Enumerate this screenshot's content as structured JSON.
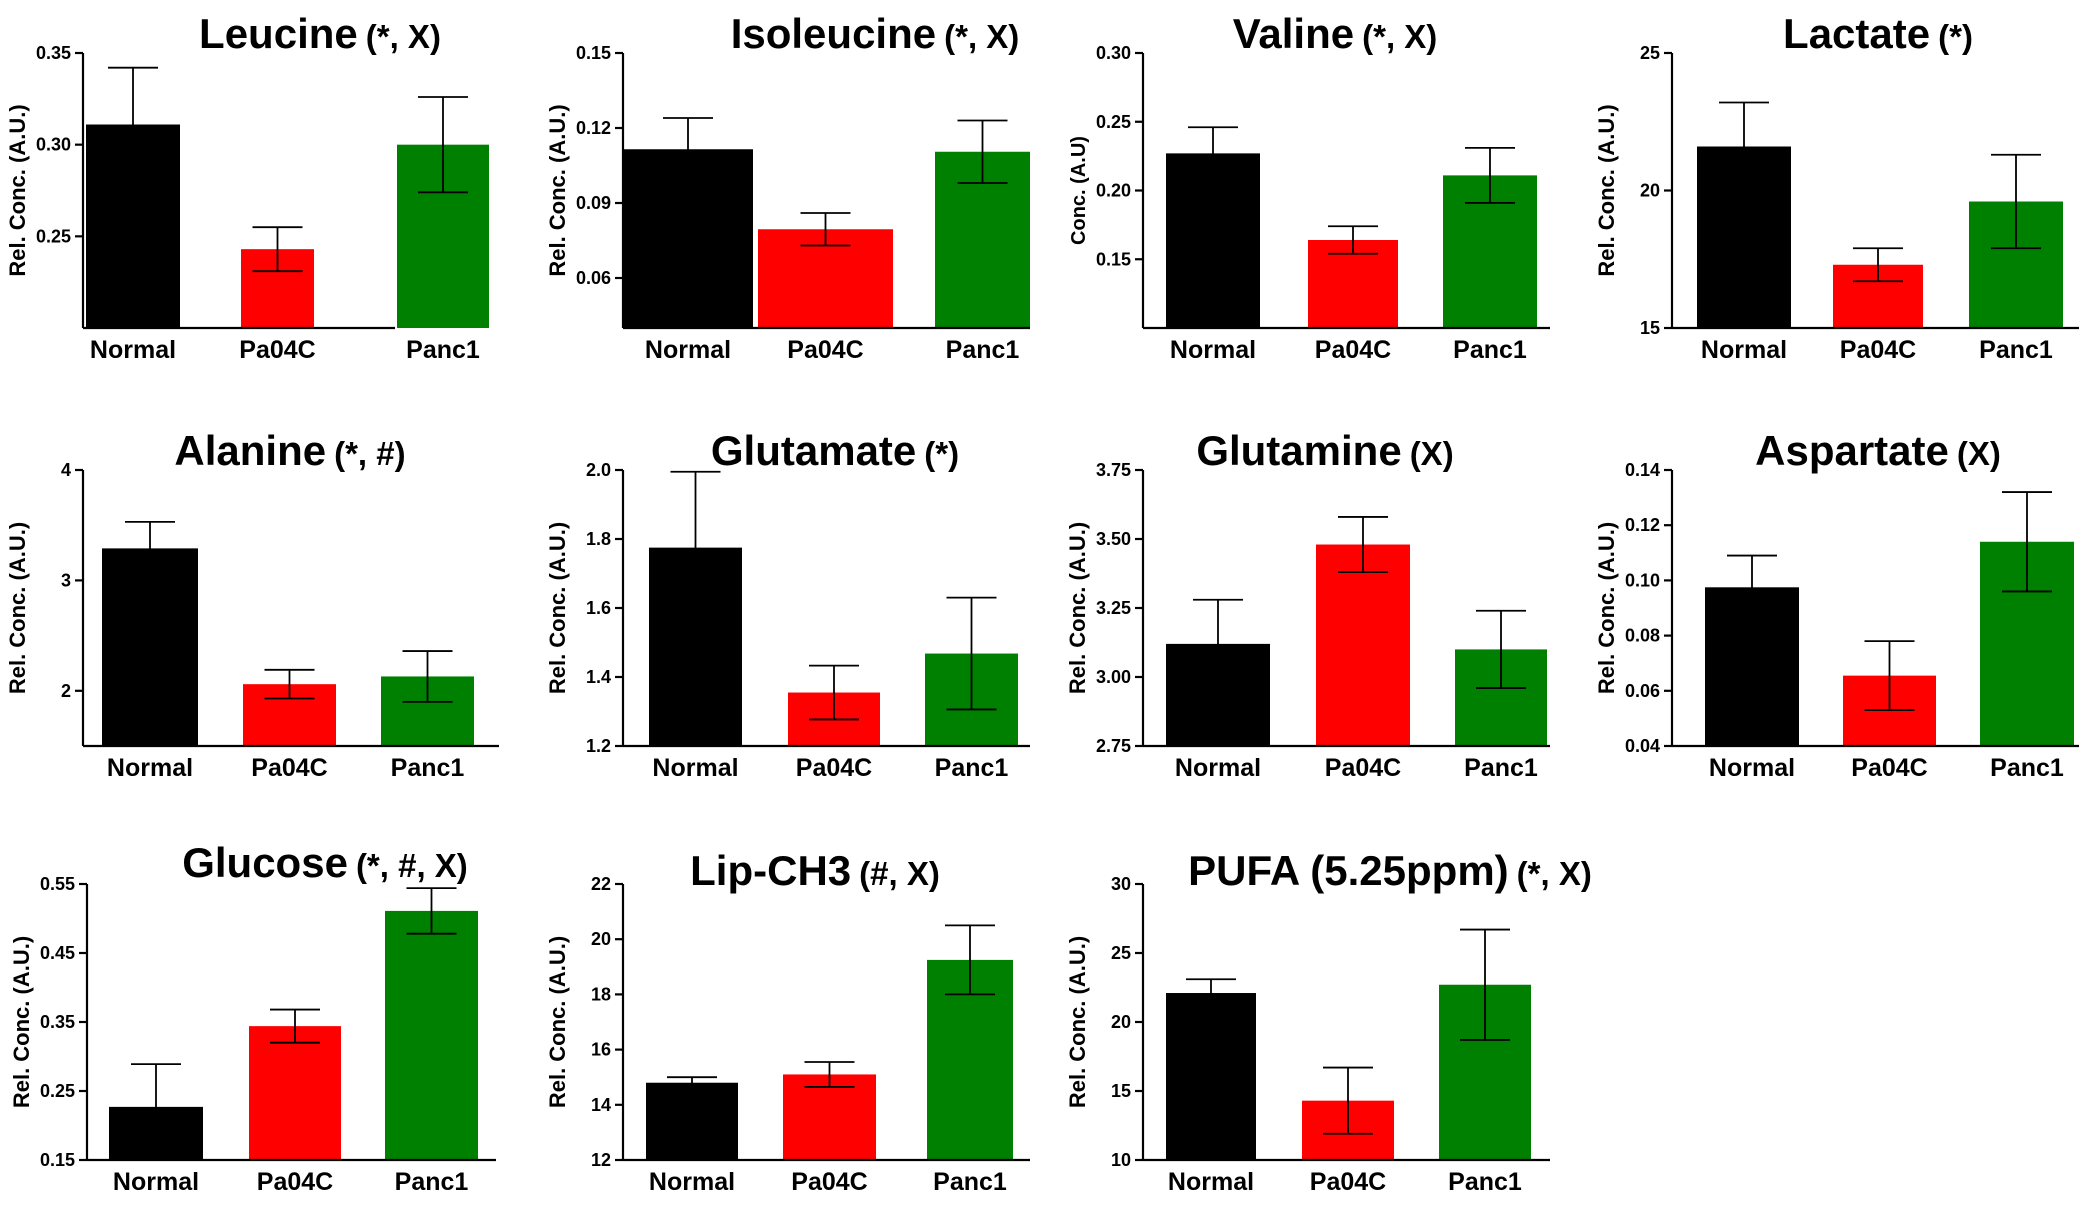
{
  "chart_data": [
    {
      "type": "bar",
      "title": "Leucine",
      "annotation": "(*, X)",
      "ylabel": "Rel. Conc. (A.U.)",
      "categories": [
        "Normal",
        "Pa04C",
        "Panc1"
      ],
      "values": [
        0.311,
        0.243,
        0.3
      ],
      "errors": [
        0.031,
        0.012,
        0.026
      ],
      "ylim": [
        0.2,
        0.35
      ],
      "ticks": [
        0.25,
        0.3,
        0.35
      ],
      "tick_labels": [
        "0.25",
        "0.30",
        "0.35"
      ],
      "colors": [
        "#000000",
        "#ff0000",
        "#008000"
      ]
    },
    {
      "type": "bar",
      "title": "Isoleucine",
      "annotation": "(*, X)",
      "ylabel": "Rel. Conc. (A.U.)",
      "categories": [
        "Normal",
        "Pa04C",
        "Panc1"
      ],
      "values": [
        0.1115,
        0.0795,
        0.1105
      ],
      "errors": [
        0.0125,
        0.0065,
        0.0125
      ],
      "ylim": [
        0.04,
        0.15
      ],
      "ticks": [
        0.06,
        0.09,
        0.12,
        0.15
      ],
      "tick_labels": [
        "0.06",
        "0.09",
        "0.12",
        "0.15"
      ],
      "colors": [
        "#000000",
        "#ff0000",
        "#008000"
      ]
    },
    {
      "type": "bar",
      "title": "Valine",
      "annotation": "(*, X)",
      "ylabel": "Conc. (A.U)",
      "categories": [
        "Normal",
        "Pa04C",
        "Panc1"
      ],
      "values": [
        0.227,
        0.164,
        0.211
      ],
      "errors": [
        0.019,
        0.01,
        0.02
      ],
      "ylim": [
        0.1,
        0.3
      ],
      "ticks": [
        0.15,
        0.2,
        0.25,
        0.3
      ],
      "tick_labels": [
        "0.15",
        "0.20",
        "0.25",
        "0.30"
      ],
      "colors": [
        "#000000",
        "#ff0000",
        "#008000"
      ]
    },
    {
      "type": "bar",
      "title": "Lactate",
      "annotation": "(*)",
      "ylabel": "Rel. Conc. (A.U.)",
      "categories": [
        "Normal",
        "Pa04C",
        "Panc1"
      ],
      "values": [
        21.6,
        17.3,
        19.6
      ],
      "errors": [
        1.6,
        0.6,
        1.7
      ],
      "ylim": [
        15,
        25
      ],
      "ticks": [
        15,
        20,
        25
      ],
      "tick_labels": [
        "15",
        "20",
        "25"
      ],
      "colors": [
        "#000000",
        "#ff0000",
        "#008000"
      ]
    },
    {
      "type": "bar",
      "title": "Alanine",
      "annotation": "(*, #)",
      "ylabel": "Rel. Conc. (A.U.)",
      "categories": [
        "Normal",
        "Pa04C",
        "Panc1"
      ],
      "values": [
        3.29,
        2.06,
        2.13
      ],
      "errors": [
        0.24,
        0.13,
        0.23
      ],
      "ylim": [
        1.5,
        4
      ],
      "ticks": [
        2,
        3,
        4
      ],
      "tick_labels": [
        "2",
        "3",
        "4"
      ],
      "colors": [
        "#000000",
        "#ff0000",
        "#008000"
      ]
    },
    {
      "type": "bar",
      "title": "Glutamate",
      "annotation": "(*)",
      "ylabel": "Rel. Conc. (A.U.)",
      "categories": [
        "Normal",
        "Pa04C",
        "Panc1"
      ],
      "values": [
        1.775,
        1.355,
        1.468
      ],
      "errors": [
        0.22,
        0.078,
        0.162
      ],
      "ylim": [
        1.2,
        2.0
      ],
      "ticks": [
        1.2,
        1.4,
        1.6,
        1.8,
        2.0
      ],
      "tick_labels": [
        "1.2",
        "1.4",
        "1.6",
        "1.8",
        "2.0"
      ],
      "colors": [
        "#000000",
        "#ff0000",
        "#008000"
      ]
    },
    {
      "type": "bar",
      "title": "Glutamine",
      "annotation": "(X)",
      "ylabel": "Rel. Conc. (A.U.)",
      "categories": [
        "Normal",
        "Pa04C",
        "Panc1"
      ],
      "values": [
        3.12,
        3.48,
        3.1
      ],
      "errors": [
        0.16,
        0.1,
        0.14
      ],
      "ylim": [
        2.75,
        3.75
      ],
      "ticks": [
        2.75,
        3.0,
        3.25,
        3.5,
        3.75
      ],
      "tick_labels": [
        "2.75",
        "3.00",
        "3.25",
        "3.50",
        "3.75"
      ],
      "colors": [
        "#000000",
        "#ff0000",
        "#008000"
      ]
    },
    {
      "type": "bar",
      "title": "Aspartate",
      "annotation": "(X)",
      "ylabel": "Rel. Conc. (A.U.)",
      "categories": [
        "Normal",
        "Pa04C",
        "Panc1"
      ],
      "values": [
        0.0975,
        0.0655,
        0.114
      ],
      "errors": [
        0.0115,
        0.0125,
        0.018
      ],
      "ylim": [
        0.04,
        0.14
      ],
      "ticks": [
        0.04,
        0.06,
        0.08,
        0.1,
        0.12,
        0.14
      ],
      "tick_labels": [
        "0.04",
        "0.06",
        "0.08",
        "0.10",
        "0.12",
        "0.14"
      ],
      "colors": [
        "#000000",
        "#ff0000",
        "#008000"
      ]
    },
    {
      "type": "bar",
      "title": "Glucose",
      "annotation": "(*, #, X)",
      "ylabel": "Rel. Conc. (A.U.)",
      "categories": [
        "Normal",
        "Pa04C",
        "Panc1"
      ],
      "values": [
        0.227,
        0.344,
        0.511
      ],
      "errors": [
        0.062,
        0.024,
        0.033
      ],
      "ylim": [
        0.15,
        0.55
      ],
      "ticks": [
        0.15,
        0.25,
        0.35,
        0.45,
        0.55
      ],
      "tick_labels": [
        "0.15",
        "0.25",
        "0.35",
        "0.45",
        "0.55"
      ],
      "colors": [
        "#000000",
        "#ff0000",
        "#008000"
      ]
    },
    {
      "type": "bar",
      "title": "Lip-CH3",
      "annotation": "(#, X)",
      "ylabel": "Rel. Conc. (A.U.)",
      "categories": [
        "Normal",
        "Pa04C",
        "Panc1"
      ],
      "values": [
        14.8,
        15.1,
        19.25
      ],
      "errors": [
        0.2,
        0.45,
        1.25
      ],
      "ylim": [
        12,
        22
      ],
      "ticks": [
        12,
        14,
        16,
        18,
        20,
        22
      ],
      "tick_labels": [
        "12",
        "14",
        "16",
        "18",
        "20",
        "22"
      ],
      "colors": [
        "#000000",
        "#ff0000",
        "#008000"
      ]
    },
    {
      "type": "bar",
      "title": "PUFA (5.25ppm)",
      "annotation": "(*, X)",
      "ylabel": "Rel. Conc. (A.U.)",
      "categories": [
        "Normal",
        "Pa04C",
        "Panc1"
      ],
      "values": [
        22.1,
        14.3,
        22.7
      ],
      "errors": [
        1.0,
        2.4,
        4.0
      ],
      "ylim": [
        10,
        30
      ],
      "ticks": [
        10,
        15,
        20,
        25,
        30
      ],
      "tick_labels": [
        "10",
        "15",
        "20",
        "25",
        "30"
      ],
      "colors": [
        "#000000",
        "#ff0000",
        "#008000"
      ]
    }
  ]
}
